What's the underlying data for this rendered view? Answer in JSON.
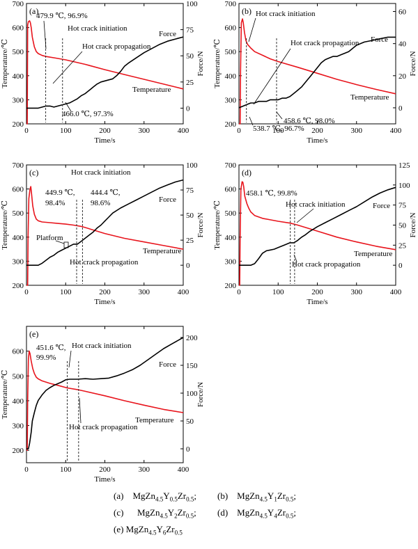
{
  "figure_captions": {
    "a": {
      "tag": "(a)",
      "base": "MgZn",
      "n1": "4.5",
      "el": "Y",
      "n2": "0.5",
      "el2": "Zr",
      "n3": "0.5",
      "end": ";"
    },
    "b": {
      "tag": "(b)",
      "base": "MgZn",
      "n1": "4.5",
      "el": "Y",
      "n2": "1",
      "el2": "Zr",
      "n3": "0.5",
      "end": ";"
    },
    "c": {
      "tag": "(c)",
      "base": "MgZn",
      "n1": "4.5",
      "el": "Y",
      "n2": "2",
      "el2": "Zr",
      "n3": "0.5",
      "end": ";"
    },
    "d": {
      "tag": "(d)",
      "base": "MgZn",
      "n1": "4.5",
      "el": "Y",
      "n2": "4",
      "el2": "Zr",
      "n3": "0.5",
      "end": ";"
    },
    "e": {
      "tag": "(e)",
      "base": "MgZn",
      "n1": "4.5",
      "el": "Y",
      "n2": "6",
      "el2": "Zr",
      "n3": "0.5",
      "end": ""
    }
  },
  "colors": {
    "temperature": "#e8141c",
    "force": "#000000",
    "axes": "#000000",
    "marker": "#333333"
  },
  "chart_data": [
    {
      "id": "a",
      "type": "line",
      "panel_label": "(a)",
      "xlabel": "Time/s",
      "ylabel_left": "Temperature/℃",
      "ylabel_right": "Force/N",
      "xlim": [
        0,
        400
      ],
      "ylim_left": [
        200,
        700
      ],
      "ylim_right": [
        -15,
        100
      ],
      "xticks": [
        0,
        100,
        200,
        300,
        400
      ],
      "yticks_left": [
        200,
        300,
        400,
        500,
        600,
        700
      ],
      "yticks_right": [
        0,
        25,
        50,
        75,
        100
      ],
      "series": [
        {
          "name": "Temperature",
          "axis": "left",
          "color": "#e8141c",
          "x": [
            0,
            2,
            2.5,
            3,
            5,
            8,
            10,
            12,
            15,
            20,
            25,
            30,
            40,
            50,
            75,
            100,
            150,
            200,
            250,
            300,
            350,
            400
          ],
          "y": [
            200,
            200,
            400,
            610,
            625,
            628,
            620,
            600,
            560,
            520,
            500,
            492,
            484,
            479.9,
            473,
            466,
            447,
            425,
            405,
            385,
            365,
            345
          ]
        },
        {
          "name": "Force",
          "axis": "right",
          "color": "#000000",
          "x": [
            0,
            10,
            20,
            30,
            40,
            50,
            60,
            70,
            80,
            90,
            100,
            110,
            120,
            130,
            140,
            150,
            160,
            170,
            180,
            190,
            200,
            210,
            220,
            230,
            240,
            250,
            260,
            280,
            300,
            320,
            340,
            360,
            380,
            400
          ],
          "y": [
            0,
            0,
            0,
            0,
            1,
            2,
            2,
            1,
            2,
            3,
            4,
            5,
            7,
            9,
            12,
            14,
            17,
            20,
            23,
            25,
            26,
            27,
            28,
            31,
            35,
            40,
            43,
            48,
            53,
            57,
            61,
            64,
            66,
            68
          ]
        }
      ],
      "markers": [
        {
          "x": 49,
          "label": "Hot crack initiation"
        },
        {
          "x": 92,
          "label": "Hot crack propagation"
        }
      ],
      "annotations": [
        "479.9 ℃, 96.9%",
        "Hot crack initiation",
        "Hot crack propagation",
        "466.0 ℃, 97.3%",
        "Force",
        "Temperature"
      ]
    },
    {
      "id": "b",
      "type": "line",
      "panel_label": "(b)",
      "xlabel": "Time/s",
      "ylabel_left": "Temperature/℃",
      "ylabel_right": "Force/N",
      "xlim": [
        0,
        400
      ],
      "ylim_left": [
        200,
        700
      ],
      "ylim_right": [
        -10,
        65
      ],
      "xticks": [
        0,
        100,
        200,
        300,
        400
      ],
      "yticks_left": [
        200,
        300,
        400,
        500,
        600,
        700
      ],
      "yticks_right": [
        0,
        20,
        40,
        60
      ],
      "series": [
        {
          "name": "Temperature",
          "axis": "left",
          "color": "#e8141c",
          "x": [
            0,
            3,
            4,
            6,
            9,
            11,
            14,
            18,
            22,
            30,
            40,
            60,
            80,
            100,
            150,
            200,
            250,
            300,
            350,
            400
          ],
          "y": [
            200,
            200,
            420,
            620,
            636,
            620,
            580,
            545,
            530,
            515,
            500,
            485,
            470,
            458.6,
            435,
            410,
            385,
            363,
            343,
            325
          ]
        },
        {
          "name": "Force",
          "axis": "right",
          "color": "#000000",
          "x": [
            0,
            10,
            20,
            30,
            40,
            50,
            60,
            70,
            80,
            90,
            100,
            110,
            120,
            130,
            140,
            150,
            160,
            170,
            180,
            190,
            200,
            210,
            220,
            230,
            240,
            250,
            260,
            270,
            280,
            290,
            300,
            320,
            340,
            360,
            380,
            400
          ],
          "y": [
            0,
            1,
            2,
            3,
            3,
            4,
            4,
            4,
            5,
            5,
            5,
            6,
            6,
            7,
            9,
            11,
            13,
            16,
            19,
            22,
            25,
            28,
            30,
            31,
            32,
            32,
            33,
            34,
            35,
            37,
            39,
            41,
            42,
            43,
            44,
            44
          ]
        }
      ],
      "markers": [
        {
          "x": 19,
          "label": "Hot crack initiation"
        },
        {
          "x": 96,
          "label": "Hot crack propagation"
        }
      ],
      "annotations": [
        "Hot crack initiation",
        "Hot crack propagation",
        "458.6 ℃, 98.0%",
        "538.7 ℃, 96.7%",
        "Force",
        "Temperature"
      ]
    },
    {
      "id": "c",
      "type": "line",
      "panel_label": "(c)",
      "xlabel": "Time/s",
      "ylabel_left": "Temperature/℃",
      "ylabel_right": "Force/N",
      "xlim": [
        0,
        400
      ],
      "ylim_left": [
        200,
        700
      ],
      "ylim_right": [
        -20,
        100
      ],
      "xticks": [
        0,
        100,
        200,
        300,
        400
      ],
      "yticks_left": [
        200,
        300,
        400,
        500,
        600,
        700
      ],
      "yticks_right": [
        0,
        25,
        50,
        75,
        100
      ],
      "series": [
        {
          "name": "Temperature",
          "axis": "left",
          "color": "#e8141c",
          "x": [
            0,
            3,
            4,
            6,
            9,
            11,
            13,
            16,
            20,
            25,
            30,
            40,
            60,
            80,
            100,
            120,
            140,
            150,
            200,
            250,
            300,
            350,
            400
          ],
          "y": [
            200,
            200,
            400,
            560,
            600,
            610,
            580,
            530,
            495,
            475,
            468,
            463,
            460,
            457,
            454,
            449.9,
            444.4,
            440,
            415,
            395,
            380,
            365,
            350
          ]
        },
        {
          "name": "Force",
          "axis": "right",
          "color": "#000000",
          "x": [
            0,
            20,
            30,
            40,
            50,
            60,
            70,
            80,
            90,
            100,
            110,
            120,
            125,
            130,
            140,
            150,
            160,
            170,
            180,
            190,
            200,
            210,
            220,
            240,
            260,
            280,
            300,
            320,
            340,
            360,
            380,
            400
          ],
          "y": [
            0,
            0,
            0,
            2,
            5,
            8,
            10,
            13,
            15,
            17,
            19,
            21,
            21,
            21,
            24,
            27,
            30,
            33,
            37,
            40,
            44,
            48,
            52,
            57,
            61,
            65,
            69,
            73,
            77,
            80,
            83,
            85
          ]
        }
      ],
      "markers": [
        {
          "x": 128,
          "label": "Hot crack initiation"
        },
        {
          "x": 143,
          "label": "Hot crack propagation"
        }
      ],
      "annotations": [
        "Hot crack initiation",
        "449.9 ℃,",
        "98.4%",
        "444.4 ℃,",
        "98.6%",
        "Platform",
        "Hot crack propagation",
        "Force",
        "Temperature"
      ]
    },
    {
      "id": "d",
      "type": "line",
      "panel_label": "(d)",
      "xlabel": "Time/s",
      "ylabel_left": "Temperature/℃",
      "ylabel_right": "Force/N",
      "xlim": [
        0,
        400
      ],
      "ylim_left": [
        200,
        700
      ],
      "ylim_right": [
        -25,
        125
      ],
      "xticks": [
        0,
        100,
        200,
        300,
        400
      ],
      "yticks_left": [
        200,
        300,
        400,
        500,
        600,
        700
      ],
      "yticks_right": [
        0,
        25,
        50,
        75,
        100,
        125
      ],
      "series": [
        {
          "name": "Temperature",
          "axis": "left",
          "color": "#e8141c",
          "x": [
            0,
            2,
            3,
            5,
            8,
            10,
            12,
            15,
            20,
            25,
            30,
            40,
            60,
            80,
            100,
            131,
            150,
            200,
            250,
            300,
            350,
            400
          ],
          "y": [
            200,
            200,
            400,
            600,
            630,
            628,
            610,
            570,
            540,
            520,
            505,
            490,
            478,
            472,
            466,
            458.1,
            450,
            425,
            400,
            380,
            362,
            348
          ]
        },
        {
          "name": "Force",
          "axis": "right",
          "color": "#000000",
          "x": [
            0,
            20,
            30,
            40,
            50,
            60,
            70,
            80,
            90,
            100,
            110,
            120,
            130,
            140,
            150,
            160,
            170,
            180,
            190,
            200,
            220,
            240,
            260,
            280,
            300,
            320,
            340,
            360,
            380,
            400
          ],
          "y": [
            0,
            0,
            0,
            2,
            8,
            15,
            18,
            19,
            20,
            22,
            24,
            26,
            28,
            28,
            31,
            35,
            38,
            42,
            45,
            48,
            53,
            58,
            63,
            68,
            73,
            79,
            85,
            90,
            94,
            97
          ]
        }
      ],
      "markers": [
        {
          "x": 131,
          "label": "Hot crack initiation"
        },
        {
          "x": 142,
          "label": "Hot crack propagation"
        }
      ],
      "annotations": [
        "458.1 ℃, 99.8%",
        "Hot crack initiation",
        "Hot crack propagation",
        "Force",
        "Temperature"
      ]
    },
    {
      "id": "e",
      "type": "line",
      "panel_label": "(e)",
      "xlabel": "Time/s",
      "ylabel_left": "Temperature/℃",
      "ylabel_right": "Force/N",
      "xlim": [
        0,
        400
      ],
      "ylim_left": [
        150,
        700
      ],
      "ylim_right": [
        -25,
        220
      ],
      "xticks": [
        0,
        100,
        200,
        300,
        400
      ],
      "yticks_left": [
        200,
        300,
        400,
        500,
        600
      ],
      "yticks_right": [
        0,
        50,
        100,
        150,
        200
      ],
      "series": [
        {
          "name": "Temperature",
          "axis": "left",
          "color": "#e8141c",
          "x": [
            0,
            2,
            3,
            5,
            7,
            9,
            12,
            16,
            20,
            25,
            30,
            40,
            60,
            80,
            104,
            130,
            150,
            200,
            250,
            300,
            350,
            400
          ],
          "y": [
            200,
            200,
            400,
            570,
            600,
            590,
            560,
            530,
            510,
            495,
            488,
            480,
            470,
            462,
            451.6,
            445,
            438,
            420,
            400,
            382,
            365,
            352
          ]
        },
        {
          "name": "Force",
          "axis": "right",
          "color": "#000000",
          "x": [
            0,
            5,
            8,
            12,
            15,
            20,
            25,
            30,
            40,
            50,
            60,
            70,
            80,
            90,
            100,
            110,
            120,
            130,
            150,
            170,
            190,
            210,
            230,
            250,
            270,
            290,
            310,
            330,
            350,
            370,
            400
          ],
          "y": [
            0,
            0,
            10,
            30,
            50,
            65,
            78,
            87,
            97,
            105,
            110,
            114,
            117,
            120,
            124,
            125,
            125,
            125,
            126,
            125,
            126,
            127,
            131,
            136,
            142,
            150,
            160,
            170,
            180,
            188,
            200
          ]
        }
      ],
      "markers": [
        {
          "x": 104,
          "label": "Hot crack initiation"
        },
        {
          "x": 133,
          "label": "Hot crack propagation"
        }
      ],
      "annotations": [
        "451.6 ℃,",
        "99.9%",
        "Hot crack initiation",
        "Hot crack propagation",
        "Force",
        "Temperature"
      ]
    }
  ]
}
